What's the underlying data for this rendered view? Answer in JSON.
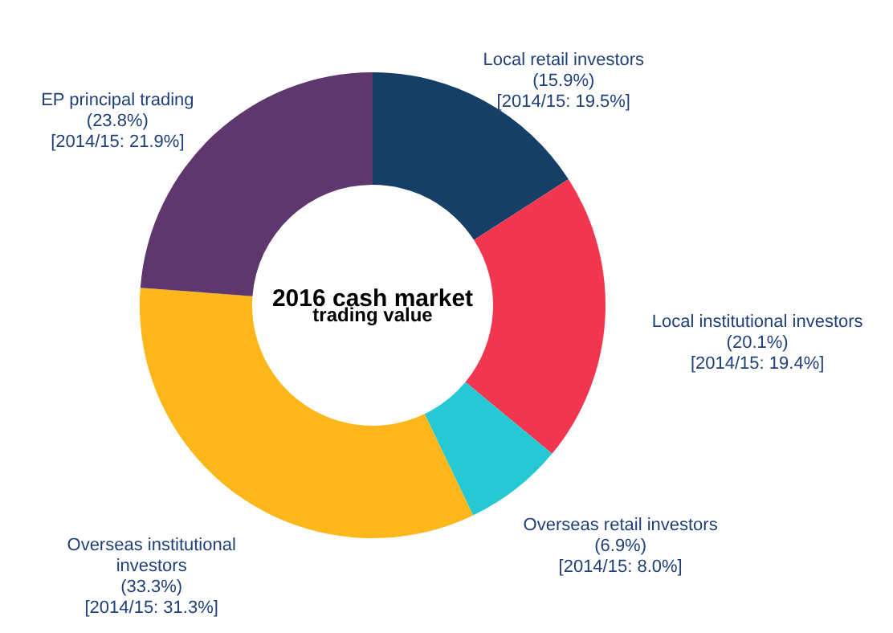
{
  "chart_data": {
    "type": "donut",
    "title": "2016 cash market",
    "subtitle": "trading value",
    "categories": [
      "Local retail investors",
      "Local institutional investors",
      "Overseas retail investors",
      "Overseas institutional investors",
      "EP principal trading"
    ],
    "values": [
      15.9,
      20.1,
      6.9,
      33.3,
      23.8
    ],
    "colors": [
      "#153f66",
      "#f2364f",
      "#24c9d3",
      "#fdb71b",
      "#5e376c"
    ],
    "value_labels": [
      "(15.9%)",
      "(20.1%)",
      "(6.9%)",
      "(33.3%)",
      "(23.8%)"
    ],
    "annotations": [
      "[2014/15: 19.5%]",
      "[2014/15: 19.4%]",
      "[2014/15: 8.0%]",
      "[2014/15: 31.3%]",
      "[2014/15: 21.9%]"
    ],
    "legend": false
  }
}
